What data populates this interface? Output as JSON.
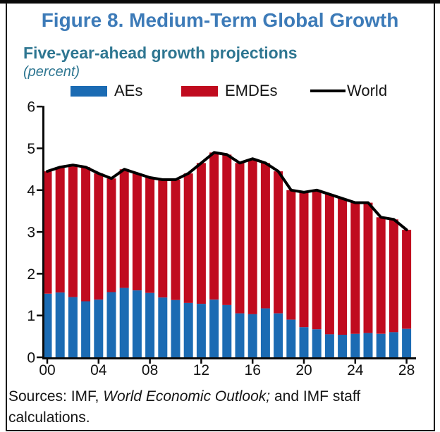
{
  "figure": {
    "title": "Figure 8. Medium-Term Global Growth",
    "subtitle": "Five-year-ahead growth projections",
    "unit_note": "(percent)"
  },
  "legend": [
    {
      "label": "AEs",
      "color": "#1b6bb3",
      "marker": "swatch"
    },
    {
      "label": "EMDEs",
      "color": "#c00b1f",
      "marker": "swatch"
    },
    {
      "label": "World",
      "color": "#000000",
      "marker": "line"
    }
  ],
  "sources": {
    "prefix": "Sources: IMF, ",
    "italic_title": "World Economic Outlook;",
    "suffix": " and IMF staff",
    "line2": "calculations."
  },
  "chart_data": {
    "type": "bar",
    "subtype": "stacked-bars-with-line",
    "title": "Five-year-ahead growth projections (percent)",
    "categories": [
      "00",
      "01",
      "02",
      "03",
      "04",
      "05",
      "06",
      "07",
      "08",
      "09",
      "10",
      "11",
      "12",
      "13",
      "14",
      "15",
      "16",
      "17",
      "18",
      "19",
      "20",
      "21",
      "22",
      "23",
      "24",
      "25",
      "26",
      "27",
      "28"
    ],
    "series": [
      {
        "name": "AEs",
        "role": "stacked-bar",
        "color": "#1b6bb3",
        "values": [
          1.52,
          1.55,
          1.44,
          1.34,
          1.38,
          1.56,
          1.66,
          1.6,
          1.54,
          1.43,
          1.37,
          1.3,
          1.28,
          1.38,
          1.25,
          1.05,
          1.03,
          1.17,
          1.05,
          0.9,
          0.72,
          0.67,
          0.55,
          0.54,
          0.56,
          0.58,
          0.56,
          0.6,
          0.68
        ]
      },
      {
        "name": "EMDEs",
        "role": "stacked-bar",
        "color": "#c00b1f",
        "values": [
          2.93,
          3.0,
          3.16,
          3.21,
          3.02,
          2.72,
          2.84,
          2.8,
          2.76,
          2.82,
          2.88,
          3.1,
          3.37,
          3.52,
          3.6,
          3.6,
          3.72,
          3.48,
          3.4,
          3.1,
          3.23,
          3.33,
          3.35,
          3.26,
          3.14,
          3.12,
          2.79,
          2.7,
          2.37
        ]
      },
      {
        "name": "World",
        "role": "line",
        "color": "#000000",
        "values": [
          4.45,
          4.55,
          4.6,
          4.55,
          4.4,
          4.28,
          4.5,
          4.4,
          4.3,
          4.25,
          4.25,
          4.4,
          4.65,
          4.9,
          4.85,
          4.65,
          4.75,
          4.65,
          4.45,
          4.0,
          3.95,
          4.0,
          3.9,
          3.8,
          3.7,
          3.7,
          3.35,
          3.3,
          3.05
        ]
      }
    ],
    "xlabel": "",
    "ylabel": "",
    "ylim": [
      0,
      6
    ],
    "yticks": [
      0,
      1,
      2,
      3,
      4,
      5,
      6
    ],
    "xticks": [
      {
        "index": 0,
        "label": "00"
      },
      {
        "index": 4,
        "label": "04"
      },
      {
        "index": 8,
        "label": "08"
      },
      {
        "index": 12,
        "label": "12"
      },
      {
        "index": 16,
        "label": "16"
      },
      {
        "index": 20,
        "label": "20"
      },
      {
        "index": 24,
        "label": "24"
      },
      {
        "index": 28,
        "label": "28"
      }
    ],
    "grid": false,
    "legend_position": "top"
  }
}
